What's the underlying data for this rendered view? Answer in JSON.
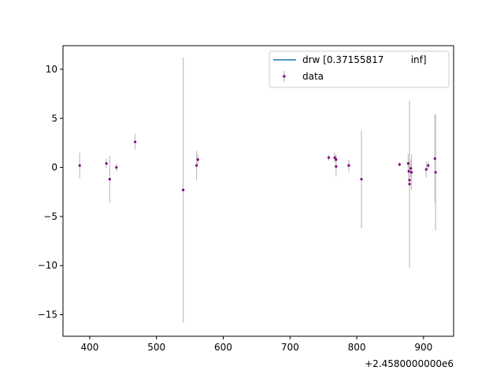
{
  "chart_data": {
    "type": "scatter",
    "x_offset_label": "+2.4580000000e6",
    "xlim": [
      360,
      945
    ],
    "ylim": [
      -17.2,
      12.4
    ],
    "xticks": [
      400,
      500,
      600,
      700,
      800,
      900
    ],
    "yticks": [
      -15,
      -10,
      -5,
      0,
      5,
      10
    ],
    "legend": {
      "placement": "top-right",
      "entries": [
        {
          "label": "drw [0.37155817         inf]",
          "kind": "line",
          "color": "#1f77b4"
        },
        {
          "label": "data",
          "kind": "errorbar",
          "color": "#800080"
        }
      ]
    },
    "colors": {
      "marker": "#800080",
      "errorbar": "#c0c0c0"
    },
    "series": [
      {
        "name": "data",
        "points": [
          {
            "x": 385,
            "y": 0.2,
            "err": 1.3
          },
          {
            "x": 425,
            "y": 0.4,
            "err": 0.5
          },
          {
            "x": 430,
            "y": -1.2,
            "err": 2.4
          },
          {
            "x": 440,
            "y": 0.0,
            "err": 0.4
          },
          {
            "x": 468,
            "y": 2.6,
            "err": 0.8
          },
          {
            "x": 540,
            "y": -2.3,
            "err": 13.5
          },
          {
            "x": 560,
            "y": 0.2,
            "err": 1.5
          },
          {
            "x": 562,
            "y": 0.8,
            "err": 0.5
          },
          {
            "x": 758,
            "y": 1.0,
            "err": 0.3
          },
          {
            "x": 767,
            "y": 1.0,
            "err": 0.5
          },
          {
            "x": 769,
            "y": 0.8,
            "err": 0.5
          },
          {
            "x": 769,
            "y": 0.1,
            "err": 1.0
          },
          {
            "x": 788,
            "y": 0.2,
            "err": 0.6
          },
          {
            "x": 807,
            "y": -1.2,
            "err": 5.0
          },
          {
            "x": 864,
            "y": 0.3,
            "err": 0.2
          },
          {
            "x": 877,
            "y": 0.4,
            "err": 1.0
          },
          {
            "x": 878,
            "y": -0.4,
            "err": 1.0
          },
          {
            "x": 879,
            "y": -1.3,
            "err": 0.6
          },
          {
            "x": 879,
            "y": -1.7,
            "err": 8.5
          },
          {
            "x": 881,
            "y": -0.1,
            "err": 0.9
          },
          {
            "x": 882,
            "y": -0.5,
            "err": 1.8
          },
          {
            "x": 904,
            "y": -0.2,
            "err": 0.8
          },
          {
            "x": 907,
            "y": 0.2,
            "err": 0.4
          },
          {
            "x": 917,
            "y": 0.9,
            "err": 4.5
          },
          {
            "x": 918,
            "y": -0.5,
            "err": 5.9
          },
          {
            "x": 690,
            "y": 9.3,
            "err": 0.5
          }
        ]
      }
    ]
  }
}
